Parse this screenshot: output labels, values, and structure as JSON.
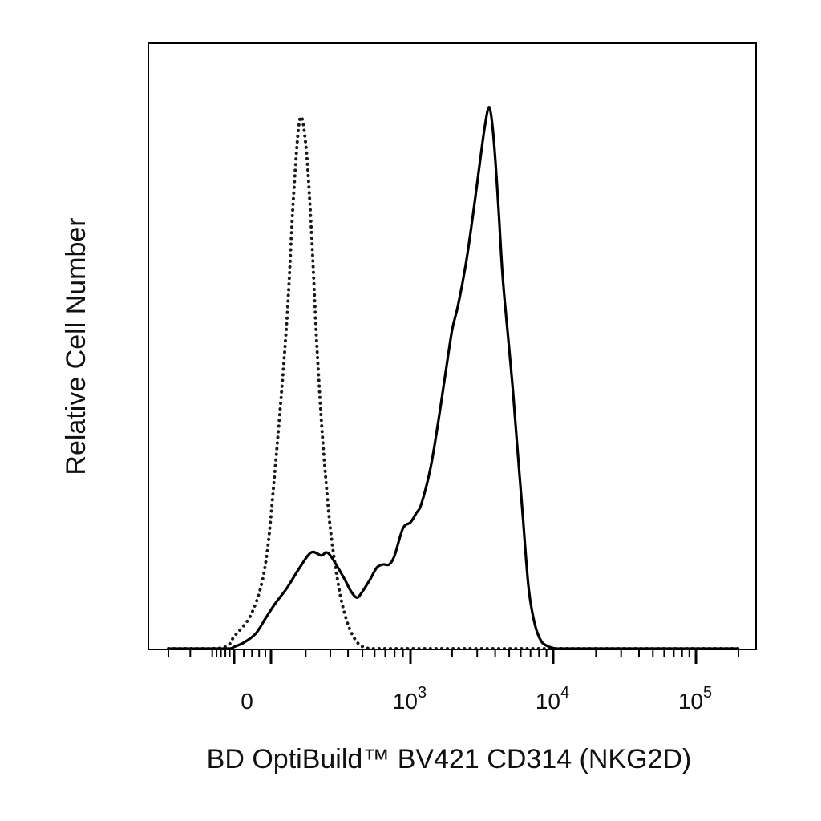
{
  "chart_data": {
    "type": "line",
    "title": "",
    "xlabel": "BD OptiBuild™ BV421 CD314 (NKG2D)",
    "ylabel": "Relative Cell Number",
    "x_scale": "biexponential",
    "xlim": [
      -300,
      200000
    ],
    "ylim": [
      0,
      100
    ],
    "grid": false,
    "legend": "none",
    "x_ticks": [
      {
        "value": 0,
        "base": "0",
        "exp": ""
      },
      {
        "value": 1000,
        "base": "10",
        "exp": "3"
      },
      {
        "value": 10000,
        "base": "10",
        "exp": "4"
      },
      {
        "value": 100000,
        "base": "10",
        "exp": "5"
      }
    ],
    "series": [
      {
        "style": "dotted",
        "color": "#1a1a1a",
        "x": [
          -300,
          -100,
          -30,
          0,
          40,
          80,
          110,
          140,
          160,
          180,
          200,
          220,
          240,
          260,
          280,
          300,
          330,
          360,
          400,
          440,
          480,
          520,
          560,
          600,
          650,
          700,
          800,
          1000,
          5000,
          200000
        ],
        "y": [
          0,
          0,
          0.5,
          2,
          6,
          14,
          30,
          54,
          75,
          88,
          84,
          70,
          52,
          38,
          28,
          20,
          13,
          8,
          4,
          1.8,
          0.6,
          0.2,
          0,
          0,
          0,
          0,
          0,
          0,
          0,
          0
        ]
      },
      {
        "style": "solid",
        "color": "#000000",
        "x": [
          -300,
          -100,
          -20,
          0,
          20,
          50,
          80,
          110,
          140,
          180,
          220,
          260,
          280,
          300,
          340,
          380,
          420,
          460,
          500,
          560,
          620,
          680,
          740,
          800,
          900,
          1000,
          1100,
          1200,
          1400,
          1600,
          1800,
          2000,
          2200,
          2500,
          2800,
          3100,
          3400,
          3650,
          3900,
          4200,
          4500,
          4900,
          5300,
          5700,
          6200,
          6800,
          7500,
          8300,
          9200,
          10000,
          11000,
          20000,
          200000
        ],
        "y": [
          0,
          0,
          0,
          0.3,
          1,
          2.5,
          5,
          7.5,
          10,
          13.5,
          16,
          15.5,
          16,
          15.5,
          13.5,
          11.5,
          9.5,
          8.5,
          9.5,
          11.5,
          13.5,
          14,
          14,
          15.5,
          20,
          21,
          22.5,
          24,
          30,
          38,
          46,
          53,
          57,
          64,
          72,
          80,
          87,
          90,
          85,
          74,
          62,
          52,
          43,
          33,
          22,
          10,
          4,
          1.2,
          0.4,
          0.1,
          0,
          0,
          0
        ]
      }
    ]
  }
}
